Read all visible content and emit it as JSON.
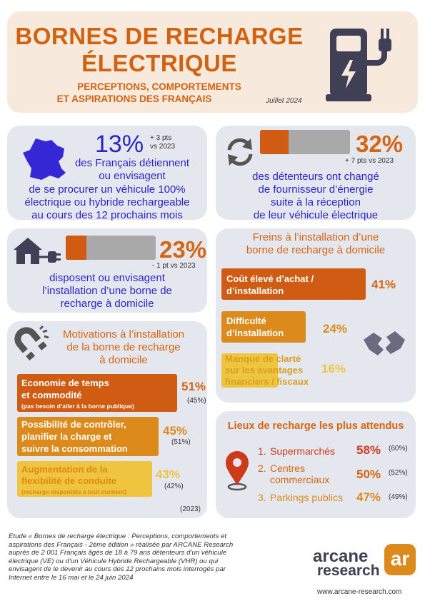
{
  "colors": {
    "header_bg": "#f7e9dc",
    "card_bg": "#e5e7ee",
    "dark_orange": "#cf5c12",
    "mid_orange": "#dd8a1d",
    "yellow": "#efc540",
    "grey_bar": "#a9a9a9",
    "blue_text": "#2b24c9",
    "orange_text": "#d66410"
  },
  "icons": [
    "charging-station-icon",
    "france-map-icon",
    "refresh-icon",
    "house-plug-icon",
    "magnet-icon",
    "handshake-broken-icon",
    "location-pin-icon"
  ],
  "header": {
    "title_line1": "BORNES DE RECHARGE",
    "title_line2": "ÉLECTRIQUE",
    "subtitle_line1": "PERCEPTIONS, COMPORTEMENTS",
    "subtitle_line2": "ET ASPIRATIONS DES FRANÇAIS",
    "date": "Juillet 2024"
  },
  "stat1": {
    "value": "13%",
    "delta_line1": "+ 3 pts",
    "delta_line2": "vs 2023",
    "text_line1": "des Français détiennent",
    "text_line2": "ou envisagent",
    "text_line3": "de se procurer un véhicule 100%",
    "text_line4": "électrique ou hybride rechargeable",
    "text_line5": "au cours des 12 prochains mois"
  },
  "stat2": {
    "value": "32%",
    "progress": 0.32,
    "delta": "+ 7 pts vs 2023",
    "text_line1": "des détenteurs ont changé",
    "text_line2": "de fournisseur d’énergie",
    "text_line3": "suite à la réception",
    "text_line4": "de leur véhicule électrique"
  },
  "stat3": {
    "value": "23%",
    "progress": 0.23,
    "delta": "- 1 pt vs 2023",
    "text_line1": "disposent ou envisagent",
    "text_line2": "l’installation d’une borne de",
    "text_line3": "recharge à domicile"
  },
  "freins": {
    "title_line1": "Freins à l’installation d’une",
    "title_line2": "borne de recharge à domicile",
    "items": [
      {
        "line1": "Coût élevé d’achat /",
        "line2": "d’installation",
        "value": 41,
        "label": "41%"
      },
      {
        "line1": "Difficulté",
        "line2": "d’installation",
        "value": 24,
        "label": "24%"
      },
      {
        "line1": "Manque de clarté",
        "line2": "sur les avantages",
        "line3": "financiers / fiscaux",
        "value": 16,
        "label": "16%"
      }
    ]
  },
  "motivations": {
    "title_line1": "Motivations à l’installation",
    "title_line2": "de la borne de recharge",
    "title_line3": "à domicile",
    "items": [
      {
        "line1": "Economie de temps",
        "line2": "et commodité",
        "note": "(pas besoin d’aller à la borne publique)",
        "value": 51,
        "label": "51%",
        "prev": "(45%)"
      },
      {
        "line1": "Possibilité de contrôler,",
        "line2": "planifier la charge et",
        "line3": "suivre la consommation",
        "value": 45,
        "label": "45%",
        "prev": "(51%)"
      },
      {
        "line1": "Augmentation de la",
        "line2": "flexibilité de conduite",
        "note": "(recharge disponible à tout moment)",
        "value": 43,
        "label": "43%",
        "prev": "(42%)"
      }
    ],
    "prev_year": "(2023)"
  },
  "lieux": {
    "title": "Lieux de recharge les plus attendus",
    "items": [
      {
        "num": "1.",
        "line1": "Supermarchés",
        "value": 58,
        "label": "58%",
        "prev": "(60%)"
      },
      {
        "num": "2.",
        "line1": "Centres",
        "line2": "commerciaux",
        "value": 50,
        "label": "50%",
        "prev": "(52%)"
      },
      {
        "num": "3.",
        "line1": "Parkings publics",
        "value": 47,
        "label": "47%",
        "prev": "(49%)"
      }
    ]
  },
  "footer": {
    "line1": "Etude « Bornes de recharge électrique : Perceptions, comportements et",
    "line2": "aspirations des Français - 2ème édition » réalisée par ARCANE Research",
    "line3": "auprès de 2 001 Français âgés de 18 à 79 ans détenteurs d’un véhicule",
    "line4": "électrique (VE) ou d’un Véhicule Hybride Rechargeable (VHR) ou qui",
    "line5": "envisagent de le devenir au cours des 12 prochains mois interrogés par",
    "line6": "Internet entre le 16 mai et le 24 juin 2024",
    "logo_word1": "arcane",
    "logo_word2": "research",
    "logo_mark": "ar",
    "url": "www.arcane-research.com"
  }
}
